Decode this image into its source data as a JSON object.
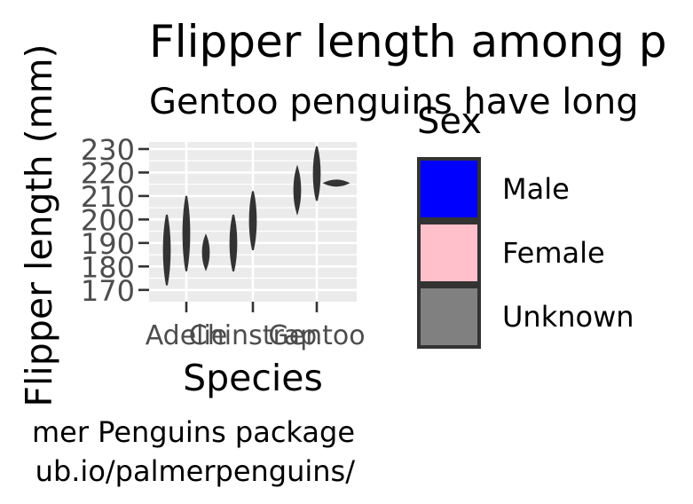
{
  "chart_data": {
    "type": "violin",
    "title": "Flipper length among p",
    "subtitle": "Gentoo penguins have long",
    "xlabel": "Species",
    "ylabel": "Flipper length (mm)",
    "caption_lines": [
      "mer Penguins package",
      "ub.io/palmerpenguins/"
    ],
    "categories": [
      "Adelie",
      "Chinstrap",
      "Gentoo"
    ],
    "ylim": [
      165,
      233
    ],
    "yticks": [
      170,
      180,
      190,
      200,
      210,
      220,
      230
    ],
    "grid": true,
    "legend": {
      "title": "Sex",
      "placement": "right",
      "entries": [
        {
          "label": "Male",
          "color": "#0000ff"
        },
        {
          "label": "Female",
          "color": "#ffc0cb"
        },
        {
          "label": "Unknown",
          "color": "#808080"
        }
      ]
    },
    "series": [
      {
        "species": "Adelie",
        "sex": "Female",
        "range": [
          172,
          202
        ]
      },
      {
        "species": "Adelie",
        "sex": "Male",
        "range": [
          178,
          210
        ]
      },
      {
        "species": "Adelie",
        "sex": "Unknown",
        "range": [
          179,
          193
        ]
      },
      {
        "species": "Chinstrap",
        "sex": "Female",
        "range": [
          178,
          202
        ]
      },
      {
        "species": "Chinstrap",
        "sex": "Male",
        "range": [
          187,
          212
        ]
      },
      {
        "species": "Gentoo",
        "sex": "Female",
        "range": [
          203,
          222
        ]
      },
      {
        "species": "Gentoo",
        "sex": "Male",
        "range": [
          208,
          231
        ]
      },
      {
        "species": "Gentoo",
        "sex": "Unknown",
        "range": [
          214,
          217
        ]
      }
    ],
    "colors": {
      "panel": "#ebebeb",
      "grid": "#ffffff",
      "violin": "#333333",
      "text": "#4d4d4d"
    }
  }
}
